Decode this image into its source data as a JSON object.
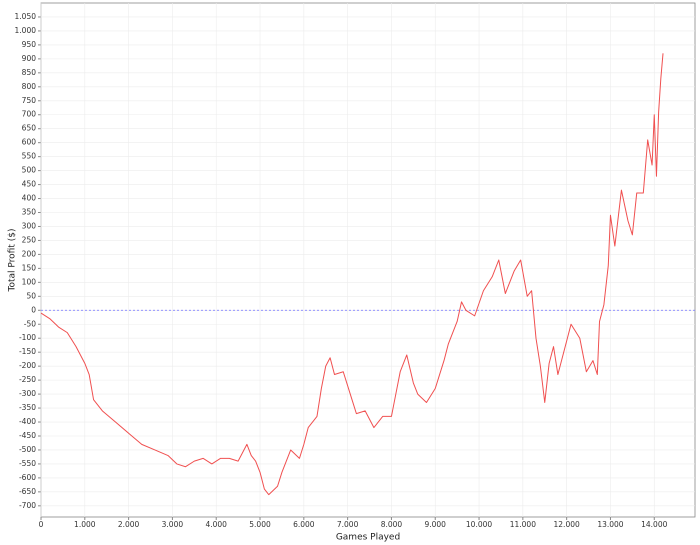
{
  "chart_data": {
    "type": "line",
    "x_label": "Games Played",
    "y_label": "Total Profit ($)",
    "x": [
      0,
      200,
      400,
      600,
      800,
      1000,
      1100,
      1200,
      1400,
      1700,
      2000,
      2300,
      2600,
      2900,
      3100,
      3300,
      3500,
      3700,
      3900,
      4100,
      4300,
      4500,
      4700,
      4800,
      4900,
      5000,
      5100,
      5200,
      5400,
      5500,
      5700,
      5900,
      6000,
      6100,
      6300,
      6400,
      6500,
      6600,
      6700,
      6900,
      7100,
      7200,
      7400,
      7600,
      7800,
      8000,
      8100,
      8200,
      8350,
      8500,
      8600,
      8800,
      9000,
      9200,
      9300,
      9500,
      9600,
      9700,
      9900,
      10100,
      10300,
      10450,
      10600,
      10800,
      10950,
      11100,
      11200,
      11300,
      11400,
      11500,
      11600,
      11700,
      11800,
      11950,
      12100,
      12300,
      12450,
      12600,
      12700,
      12750,
      12850,
      12950,
      13000,
      13100,
      13250,
      13400,
      13500,
      13600,
      13750,
      13850,
      13950,
      14000,
      14050,
      14100,
      14150,
      14200
    ],
    "values": [
      -10,
      -30,
      -60,
      -80,
      -130,
      -190,
      -230,
      -320,
      -360,
      -400,
      -440,
      -480,
      -500,
      -520,
      -550,
      -560,
      -540,
      -530,
      -550,
      -530,
      -530,
      -540,
      -480,
      -520,
      -540,
      -580,
      -640,
      -660,
      -630,
      -580,
      -500,
      -530,
      -480,
      -420,
      -380,
      -280,
      -200,
      -170,
      -230,
      -220,
      -320,
      -370,
      -360,
      -420,
      -380,
      -380,
      -300,
      -220,
      -160,
      -260,
      -300,
      -330,
      -280,
      -180,
      -120,
      -40,
      30,
      0,
      -20,
      70,
      120,
      180,
      60,
      140,
      180,
      50,
      70,
      -100,
      -200,
      -330,
      -190,
      -130,
      -230,
      -140,
      -50,
      -100,
      -220,
      -180,
      -230,
      -40,
      20,
      160,
      340,
      230,
      430,
      320,
      270,
      420,
      420,
      610,
      520,
      700,
      480,
      710,
      830,
      920
    ],
    "color": "#f05050",
    "xlim": [
      0,
      14930
    ],
    "ylim": [
      -740,
      1100
    ],
    "xticks": [
      0,
      {
        "value": 1000,
        "label": "1.000"
      },
      {
        "value": 2000,
        "label": "2.000"
      },
      {
        "value": 3000,
        "label": "3.000"
      },
      {
        "value": 4000,
        "label": "4.000"
      },
      {
        "value": 5000,
        "label": "5.000"
      },
      {
        "value": 6000,
        "label": "6.000"
      },
      {
        "value": 7000,
        "label": "7.000"
      },
      {
        "value": 8000,
        "label": "8.000"
      },
      {
        "value": 9000,
        "label": "9.000"
      },
      {
        "value": 10000,
        "label": "10.000"
      },
      {
        "value": 11000,
        "label": "11.000"
      },
      {
        "value": 12000,
        "label": "12.000"
      },
      {
        "value": 13000,
        "label": "13.000"
      },
      {
        "value": 14000,
        "label": "14.000"
      }
    ],
    "yticks": [
      {
        "value": 1050,
        "label": "1.050"
      },
      {
        "value": 1000,
        "label": "1.000"
      },
      950,
      900,
      850,
      800,
      750,
      700,
      650,
      600,
      550,
      500,
      450,
      400,
      350,
      300,
      250,
      200,
      150,
      100,
      50,
      0,
      -50,
      -100,
      -150,
      -200,
      -250,
      -300,
      -350,
      -400,
      -450,
      -500,
      -550,
      -600,
      -650,
      -700
    ],
    "grid": true,
    "reference_line": 0,
    "reference_color": "#6f6fff"
  }
}
